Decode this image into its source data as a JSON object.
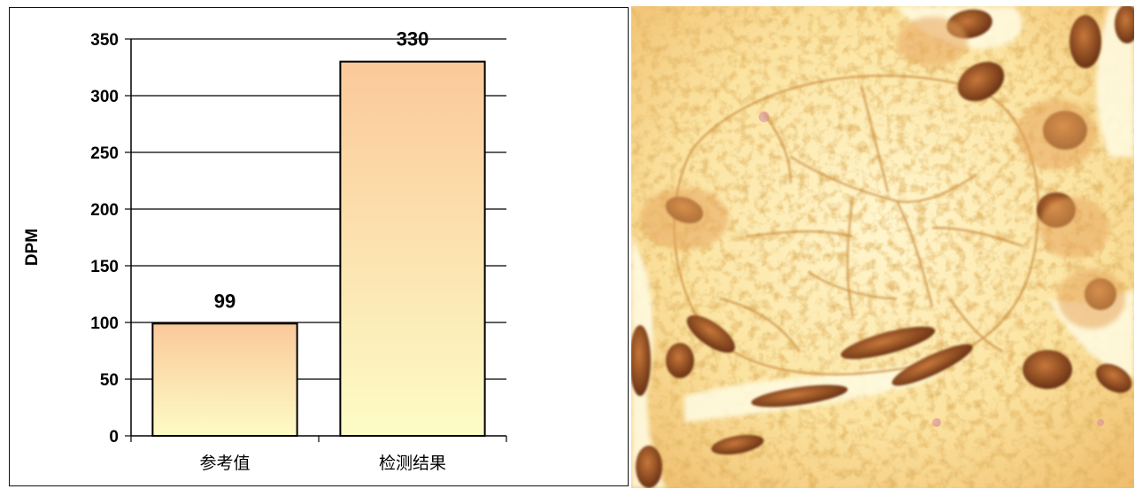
{
  "chart_data": {
    "type": "bar",
    "categories": [
      "参考值",
      "检测结果"
    ],
    "values": [
      99,
      330
    ],
    "data_labels": [
      "99",
      "330"
    ],
    "title": "",
    "xlabel": "",
    "ylabel": "DPM",
    "ylim": [
      0,
      350
    ],
    "yticks": [
      0,
      50,
      100,
      150,
      200,
      250,
      300,
      350
    ],
    "grid": true,
    "legend": "none",
    "bar_gradient_top": "#fbc99a",
    "bar_gradient_bottom": "#fdfcc6",
    "bar_stroke": "#000000"
  },
  "image": {
    "kind": "micrograph",
    "tint": "#fbe9a8"
  }
}
